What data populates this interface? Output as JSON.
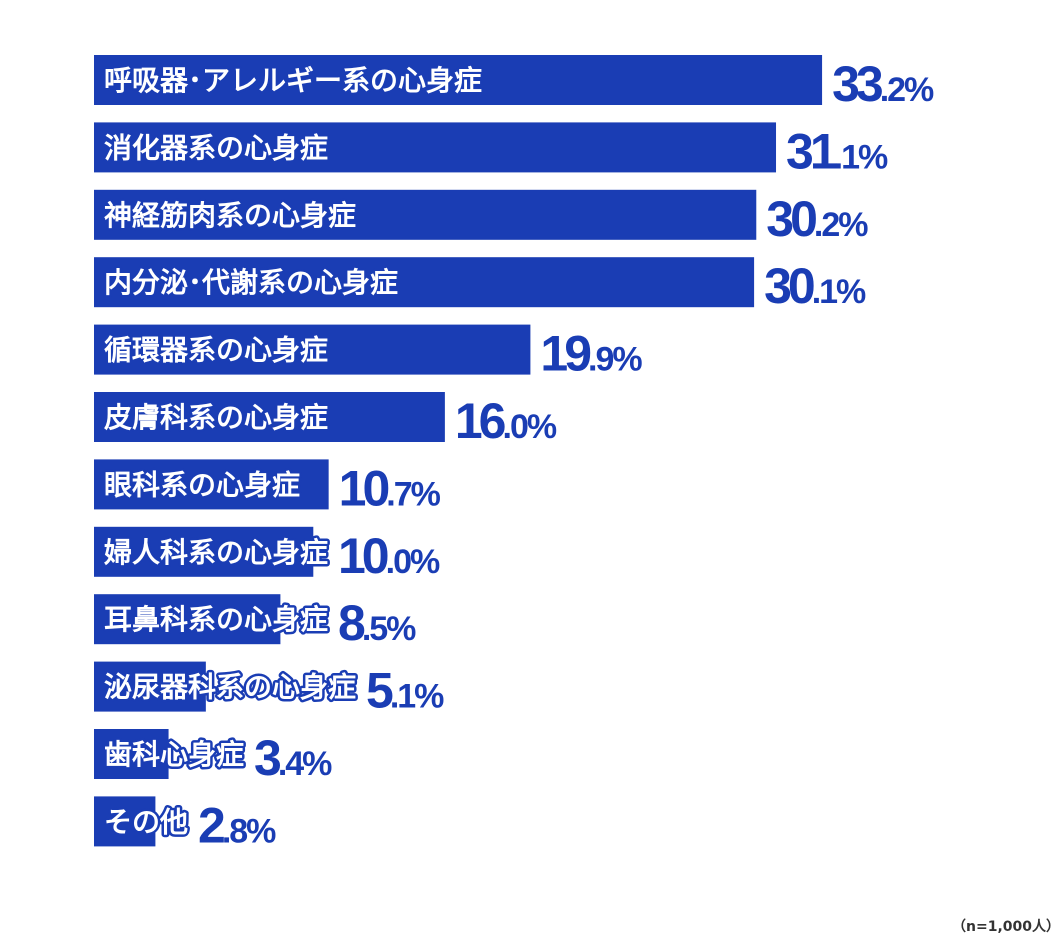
{
  "chart_data": {
    "type": "bar",
    "orientation": "horizontal",
    "categories": [
      "呼吸器･アレルギー系の心身症",
      "消化器系の心身症",
      "神経筋肉系の心身症",
      "内分泌･代謝系の心身症",
      "循環器系の心身症",
      "皮膚科系の心身症",
      "眼科系の心身症",
      "婦人科系の心身症",
      "耳鼻科系の心身症",
      "泌尿器科系の心身症",
      "歯科心身症",
      "その他"
    ],
    "values": [
      33.2,
      31.1,
      30.2,
      30.1,
      19.9,
      16.0,
      10.7,
      10.0,
      8.5,
      5.1,
      3.4,
      2.8
    ],
    "value_labels": [
      "33.2%",
      "31.1%",
      "30.2%",
      "30.1%",
      "19.9%",
      "16.0%",
      "10.7%",
      "10.0%",
      "8.5%",
      "5.1%",
      "3.4%",
      "2.8%"
    ],
    "unit": "%",
    "color": "#1a3db4",
    "grid": false,
    "legend": "none"
  },
  "note": "（n=1,000人）"
}
